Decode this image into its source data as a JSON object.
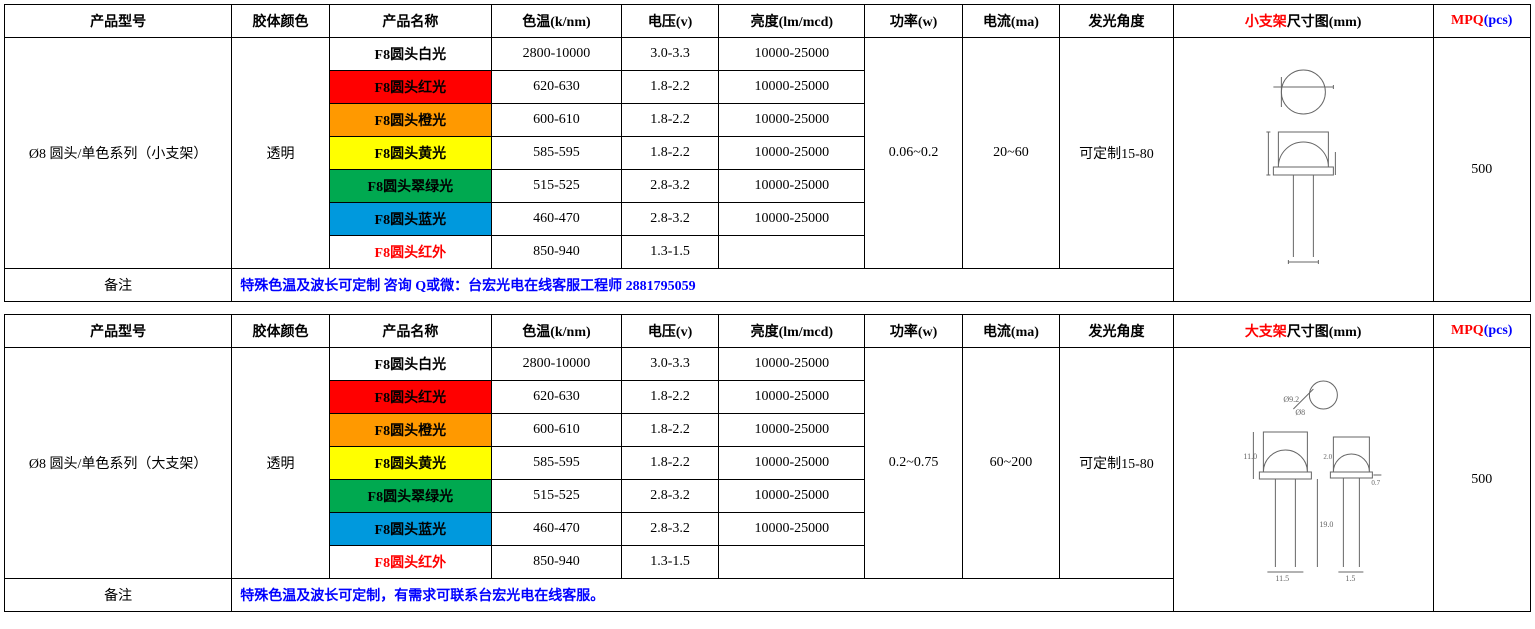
{
  "headers": {
    "model": "产品型号",
    "gel_color": "胶体颜色",
    "name": "产品名称",
    "color_temp": "色温(k/nm)",
    "voltage": "电压(v)",
    "brightness": "亮度(lm/mcd)",
    "power": "功率(w)",
    "current": "电流(ma)",
    "angle": "发光角度",
    "dim_small_red": "小支架",
    "dim_suffix": "尺寸图(mm)",
    "dim_large_red": "大支架",
    "mpq_red": "MPQ",
    "mpq_suffix": "(pcs)"
  },
  "tables": [
    {
      "model": "Ø8 圆头/单色系列（小支架）",
      "gel_color": "透明",
      "power": "0.06~0.2",
      "current": "20~60",
      "angle": "可定制15-80",
      "mpq": "500",
      "note_label": "备注",
      "note_text": "特殊色温及波长可定制 咨询 Q或微：台宏光电在线客服工程师 2881795059",
      "dim_header_type": "small",
      "rows": [
        {
          "name": "F8圆头白光",
          "ct": "2800-10000",
          "v": "3.0-3.3",
          "lm": "10000-25000",
          "cls": "row-white",
          "bold": true
        },
        {
          "name": "F8圆头红光",
          "ct": "620-630",
          "v": "1.8-2.2",
          "lm": "10000-25000",
          "cls": "row-red"
        },
        {
          "name": "F8圆头橙光",
          "ct": "600-610",
          "v": "1.8-2.2",
          "lm": "10000-25000",
          "cls": "row-orange"
        },
        {
          "name": "F8圆头黄光",
          "ct": "585-595",
          "v": "1.8-2.2",
          "lm": "10000-25000",
          "cls": "row-yellow"
        },
        {
          "name": "F8圆头翠绿光",
          "ct": "515-525",
          "v": "2.8-3.2",
          "lm": "10000-25000",
          "cls": "row-green"
        },
        {
          "name": "F8圆头蓝光",
          "ct": "460-470",
          "v": "2.8-3.2",
          "lm": "10000-25000",
          "cls": "row-blue"
        },
        {
          "name": "F8圆头红外",
          "ct": "850-940",
          "v": "1.3-1.5",
          "lm": "",
          "cls": "row-infrared"
        }
      ]
    },
    {
      "model": "Ø8 圆头/单色系列（大支架）",
      "gel_color": "透明",
      "power": "0.2~0.75",
      "current": "60~200",
      "angle": "可定制15-80",
      "mpq": "500",
      "note_label": "备注",
      "note_text": "特殊色温及波长可定制，有需求可联系台宏光电在线客服。",
      "dim_header_type": "large",
      "rows": [
        {
          "name": "F8圆头白光",
          "ct": "2800-10000",
          "v": "3.0-3.3",
          "lm": "10000-25000",
          "cls": "row-white",
          "bold": true
        },
        {
          "name": "F8圆头红光",
          "ct": "620-630",
          "v": "1.8-2.2",
          "lm": "10000-25000",
          "cls": "row-red"
        },
        {
          "name": "F8圆头橙光",
          "ct": "600-610",
          "v": "1.8-2.2",
          "lm": "10000-25000",
          "cls": "row-orange"
        },
        {
          "name": "F8圆头黄光",
          "ct": "585-595",
          "v": "1.8-2.2",
          "lm": "10000-25000",
          "cls": "row-yellow"
        },
        {
          "name": "F8圆头翠绿光",
          "ct": "515-525",
          "v": "2.8-3.2",
          "lm": "10000-25000",
          "cls": "row-green"
        },
        {
          "name": "F8圆头蓝光",
          "ct": "460-470",
          "v": "2.8-3.2",
          "lm": "10000-25000",
          "cls": "row-blue"
        },
        {
          "name": "F8圆头红外",
          "ct": "850-940",
          "v": "1.3-1.5",
          "lm": "",
          "cls": "row-infrared"
        }
      ]
    }
  ],
  "col_widths": [
    "14%",
    "6%",
    "10%",
    "8%",
    "6%",
    "9%",
    "6%",
    "6%",
    "7%",
    "16%",
    "6%"
  ],
  "colors": {
    "border": "#000000",
    "bg": "#ffffff",
    "red": "#ff0000",
    "blue": "#0000ff",
    "row_red": "#ff0000",
    "row_orange": "#ff9900",
    "row_yellow": "#ffff00",
    "row_green": "#00a950",
    "row_blue": "#0099dd"
  }
}
